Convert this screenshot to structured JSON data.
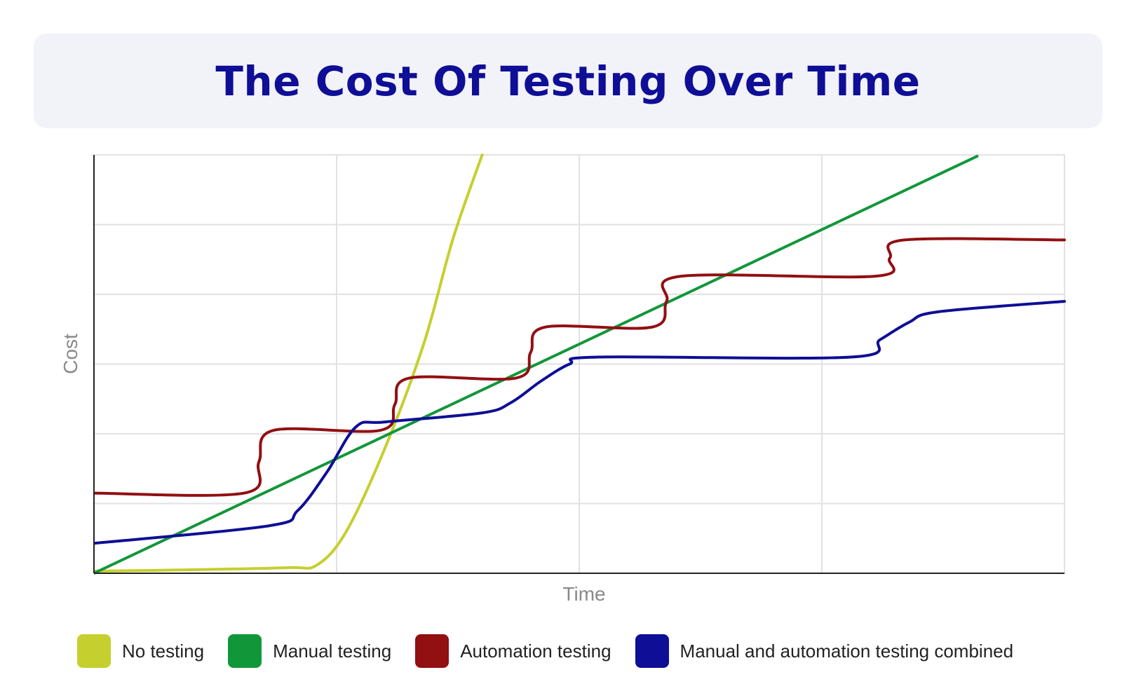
{
  "chart_data": {
    "type": "line",
    "title": "The Cost Of Testing Over Time",
    "xlabel": "Time",
    "ylabel": "Cost",
    "xlim": [
      0,
      100
    ],
    "ylim": [
      0,
      6
    ],
    "grid": true,
    "legend_position": "bottom",
    "series": [
      {
        "name": "No testing",
        "color": "#c5cf2e",
        "x": [
          0,
          10,
          20,
          23,
          26,
          30,
          34,
          37,
          40
        ],
        "y": [
          0.03,
          0.05,
          0.08,
          0.12,
          0.6,
          1.8,
          3.3,
          4.8,
          6.0
        ]
      },
      {
        "name": "Manual testing",
        "color": "#12963a",
        "x": [
          0,
          91
        ],
        "y": [
          0.0,
          5.98
        ]
      },
      {
        "name": "Automation testing",
        "color": "#920f12",
        "x": [
          0,
          15.5,
          17,
          18.5,
          29.5,
          31,
          32.5,
          43.5,
          45,
          46.5,
          57.5,
          59,
          60.5,
          80.5,
          82,
          83.5,
          100
        ],
        "y": [
          1.15,
          1.15,
          1.6,
          2.05,
          2.05,
          2.42,
          2.8,
          2.8,
          3.17,
          3.53,
          3.53,
          3.9,
          4.26,
          4.26,
          4.52,
          4.78,
          4.78
        ]
      },
      {
        "name": "Manual and automation testing combined",
        "color": "#0e0e96",
        "x": [
          0,
          18,
          21,
          24,
          27,
          30,
          40,
          43,
          46,
          49,
          52,
          78,
          81,
          84,
          87,
          100
        ],
        "y": [
          0.43,
          0.68,
          0.9,
          1.45,
          2.1,
          2.17,
          2.3,
          2.45,
          2.75,
          3.0,
          3.1,
          3.1,
          3.35,
          3.6,
          3.75,
          3.9
        ]
      }
    ]
  }
}
